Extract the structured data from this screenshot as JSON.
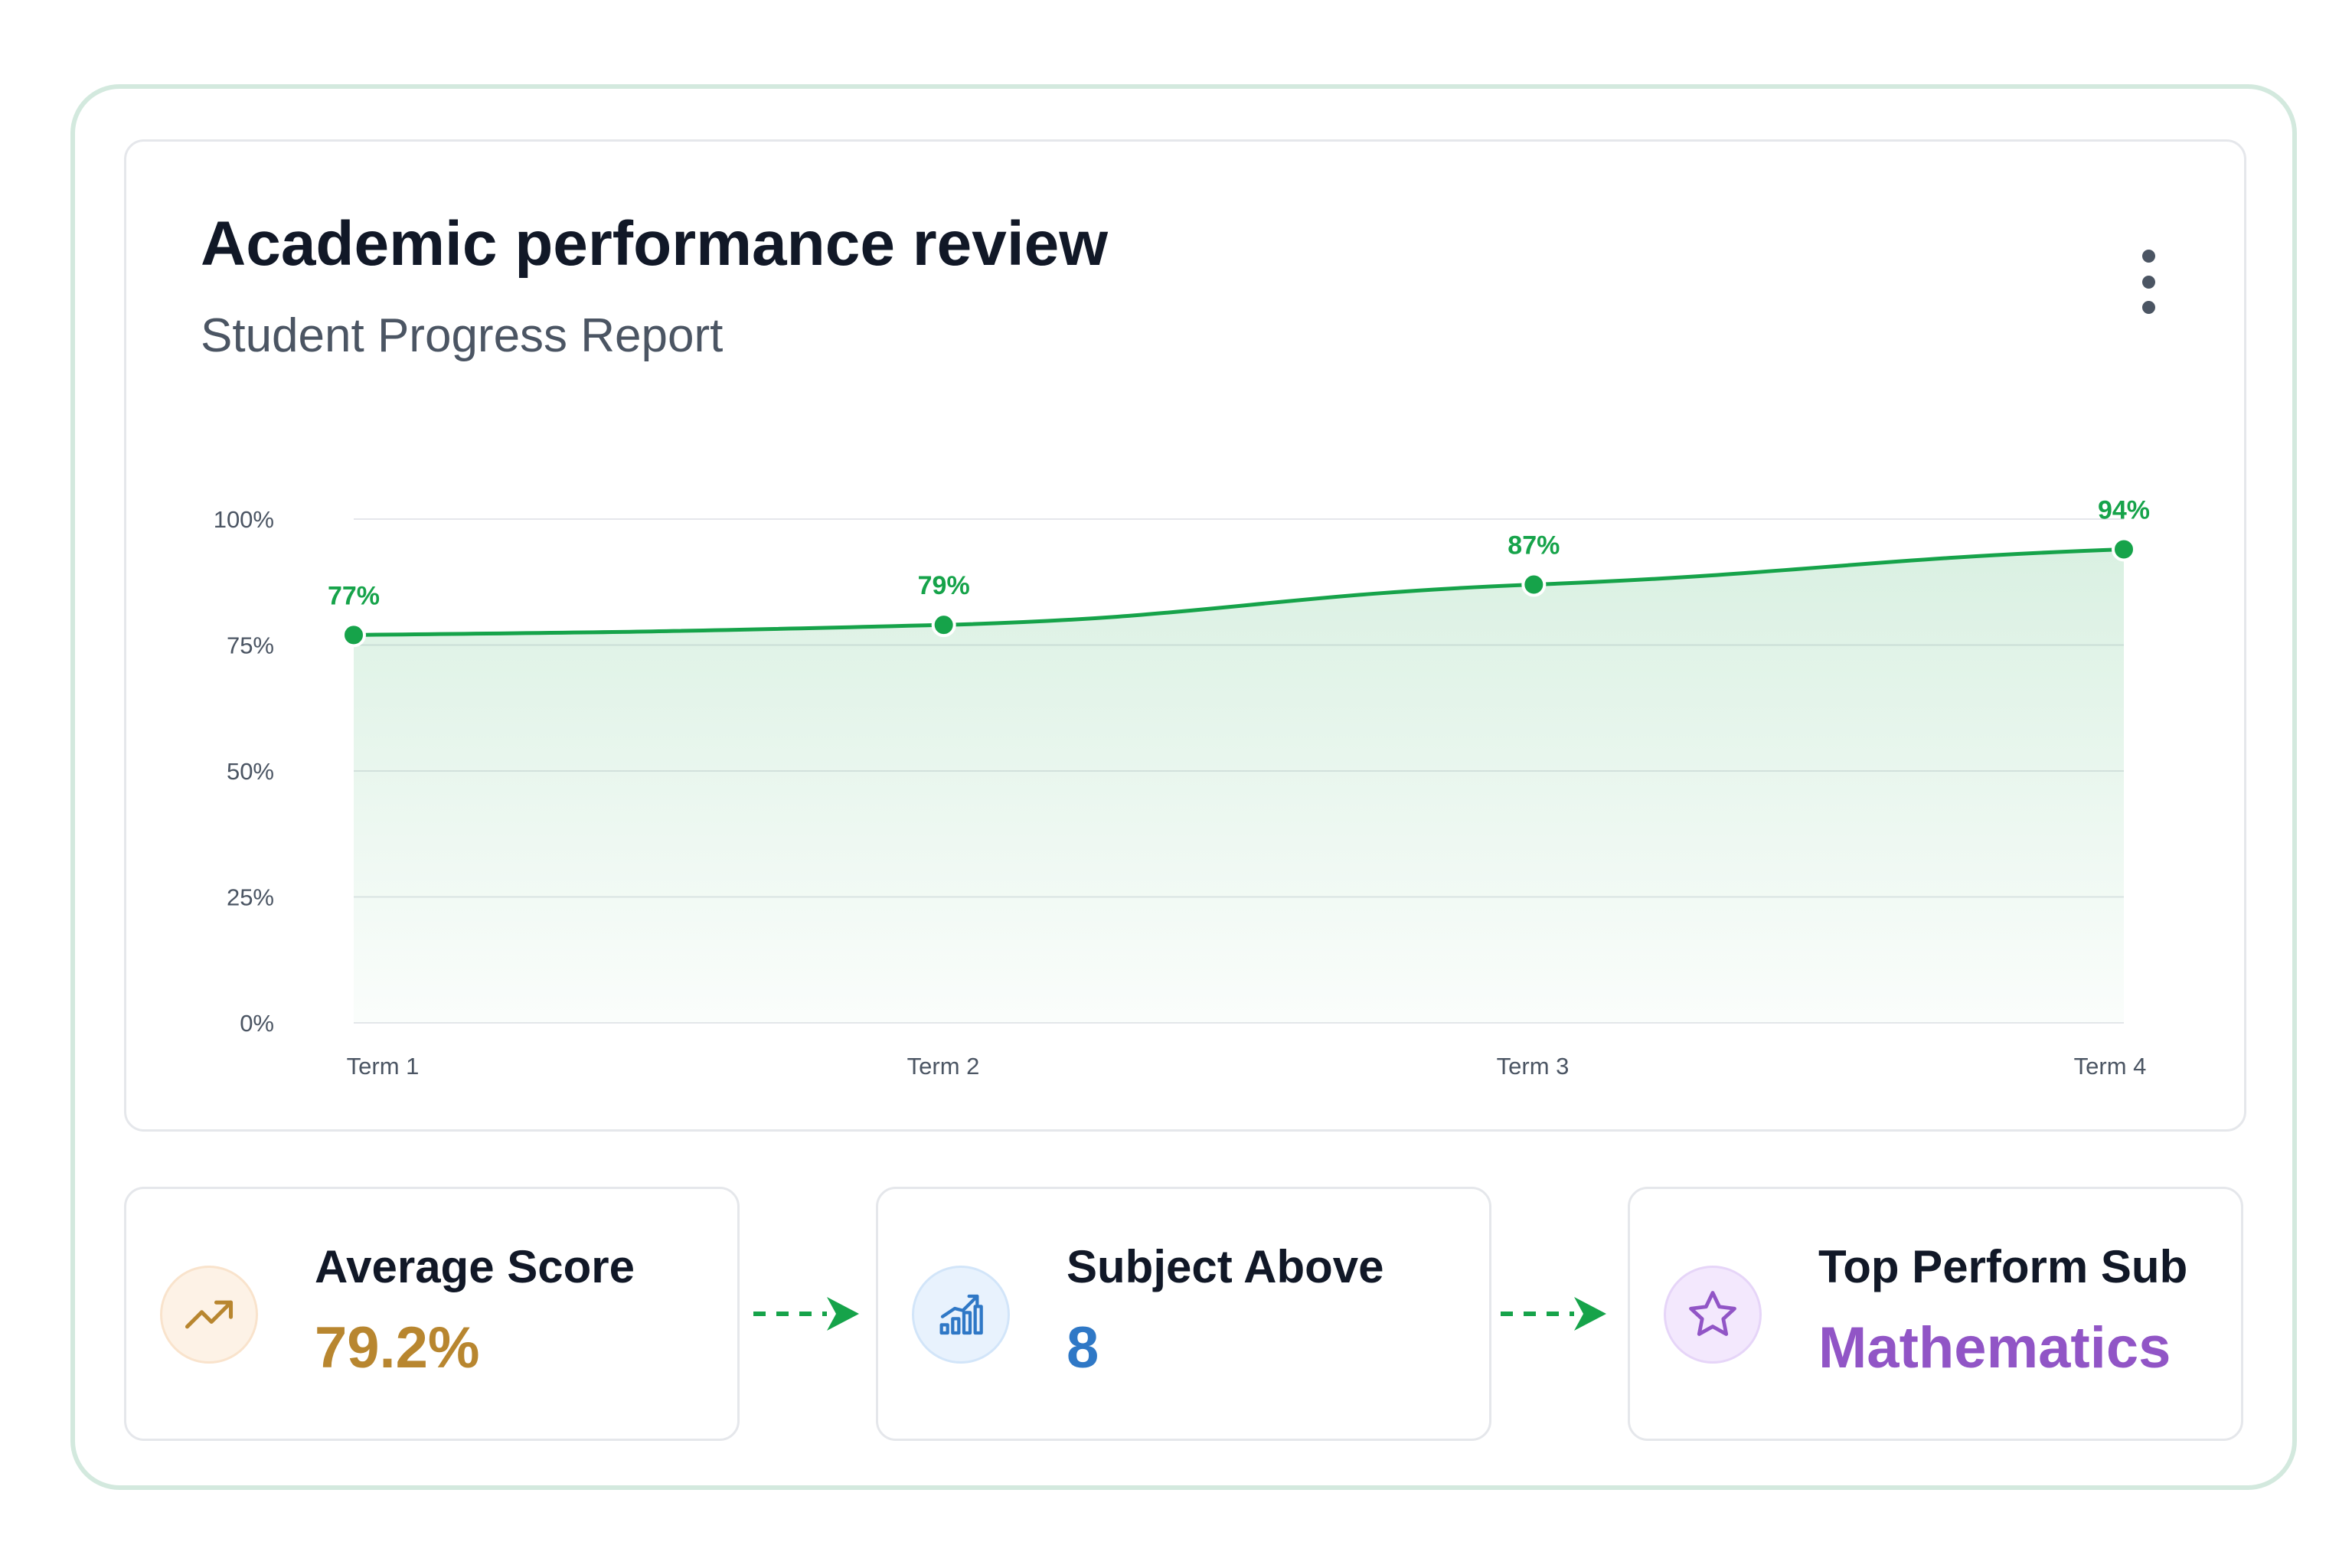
{
  "header": {
    "title": "Academic performance review",
    "subtitle": "Student Progress Report"
  },
  "chart_data": {
    "type": "area",
    "title": "",
    "xlabel": "",
    "ylabel": "",
    "categories": [
      "Term 1",
      "Term 2",
      "Term 3",
      "Term 4"
    ],
    "series": [
      {
        "values": [
          77,
          79,
          87,
          94
        ],
        "labels": [
          "77%",
          "79%",
          "87%",
          "94%"
        ]
      }
    ],
    "ylim": [
      0,
      100
    ],
    "yticks": [
      0,
      25,
      50,
      75,
      100
    ],
    "ytick_labels": [
      "0%",
      "25%",
      "50%",
      "75%",
      "100%"
    ],
    "grid": true,
    "line_color": "#16a34a",
    "fill_color": "#16a34a"
  },
  "stats": [
    {
      "label": "Average Score",
      "value": "79.2%",
      "icon": "trending-up-icon",
      "color": "#b8862f",
      "icon_bg": "#fdf2e6",
      "icon_border": "#f9e3cc"
    },
    {
      "label": "Subject Above",
      "value": "8",
      "icon": "bar-chart-up-icon",
      "color": "#2f78c6",
      "icon_bg": "#e8f2fd",
      "icon_border": "#d2e5f9"
    },
    {
      "label": "Top Perform Sub",
      "value": "Mathematics",
      "icon": "star-icon",
      "color": "#9155c6",
      "icon_bg": "#f3e8fd",
      "icon_border": "#e6d5f8"
    }
  ],
  "arrow_color": "#16a34a"
}
